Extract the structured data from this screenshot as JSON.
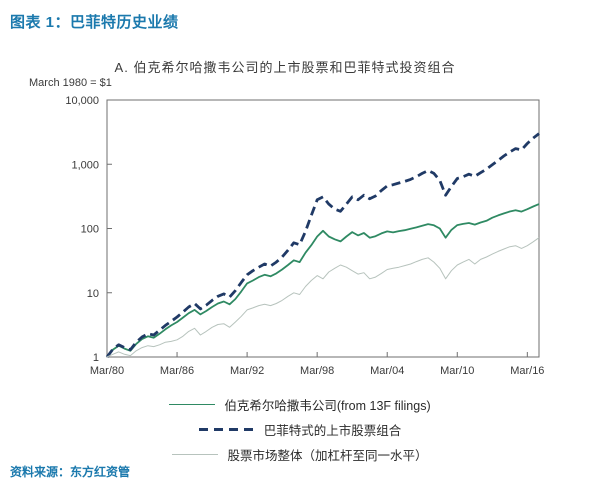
{
  "page": {
    "title": "图表 1：巴菲特历史业绩",
    "source": "资料来源：东方红资管"
  },
  "chart_data": {
    "type": "line",
    "title": "A. 伯克希尔哈撒韦公司的上市股票和巴菲特式投资组合",
    "note": "March 1980 = $1",
    "yscale": "log",
    "grid": false,
    "legend_position": "below",
    "xlim": [
      1980.25,
      2017.25
    ],
    "ylim": [
      1,
      10000
    ],
    "frame_color": "#6f6f6f",
    "xticks": [
      {
        "x": 1980.25,
        "label": "Mar/80"
      },
      {
        "x": 1986.25,
        "label": "Mar/86"
      },
      {
        "x": 1992.25,
        "label": "Mar/92"
      },
      {
        "x": 1998.25,
        "label": "Mar/98"
      },
      {
        "x": 2004.25,
        "label": "Mar/04"
      },
      {
        "x": 2010.25,
        "label": "Mar/10"
      },
      {
        "x": 2016.25,
        "label": "Mar/16"
      }
    ],
    "yticks": [
      {
        "v": 1,
        "label": "1"
      },
      {
        "v": 10,
        "label": "10"
      },
      {
        "v": 100,
        "label": "100"
      },
      {
        "v": 1000,
        "label": "1,000"
      },
      {
        "v": 10000,
        "label": "10,000"
      }
    ],
    "x": [
      1980.25,
      1980.75,
      1981.25,
      1981.75,
      1982.25,
      1982.75,
      1983.25,
      1983.75,
      1984.25,
      1984.75,
      1985.25,
      1985.75,
      1986.25,
      1986.75,
      1987.25,
      1987.75,
      1988.25,
      1988.75,
      1989.25,
      1989.75,
      1990.25,
      1990.75,
      1991.25,
      1991.75,
      1992.25,
      1992.75,
      1993.25,
      1993.75,
      1994.25,
      1994.75,
      1995.25,
      1995.75,
      1996.25,
      1996.75,
      1997.25,
      1997.75,
      1998.25,
      1998.75,
      1999.25,
      1999.75,
      2000.25,
      2000.75,
      2001.25,
      2001.75,
      2002.25,
      2002.75,
      2003.25,
      2003.75,
      2004.25,
      2004.75,
      2005.25,
      2005.75,
      2006.25,
      2006.75,
      2007.25,
      2007.75,
      2008.25,
      2008.75,
      2009.25,
      2009.75,
      2010.25,
      2010.75,
      2011.25,
      2011.75,
      2012.25,
      2012.75,
      2013.25,
      2013.75,
      2014.25,
      2014.75,
      2015.25,
      2015.75,
      2016.25,
      2016.75,
      2017.25
    ],
    "series": [
      {
        "id": "berkshire",
        "name": "伯克希尔哈撒韦公司(from 13F filings)",
        "color": "#2f8a63",
        "width": 1.8,
        "dash": null,
        "values": [
          1.0,
          1.3,
          1.5,
          1.35,
          1.25,
          1.6,
          1.9,
          2.1,
          2.0,
          2.3,
          2.7,
          3.1,
          3.5,
          4.1,
          4.8,
          5.4,
          4.6,
          5.2,
          6.0,
          6.8,
          7.3,
          6.6,
          8.0,
          10.5,
          14,
          15.5,
          17.5,
          19,
          18,
          20,
          23,
          27,
          32,
          30,
          42,
          55,
          75,
          92,
          75,
          68,
          63,
          75,
          88,
          78,
          85,
          72,
          76,
          84,
          90,
          87,
          91,
          94,
          99,
          104,
          110,
          117,
          112,
          100,
          72,
          95,
          113,
          118,
          122,
          115,
          124,
          132,
          147,
          160,
          172,
          184,
          192,
          183,
          200,
          220,
          240
        ]
      },
      {
        "id": "buffett-style-portfolio",
        "name": "巴菲特式的上市股票组合",
        "color": "#203a66",
        "width": 2.8,
        "dash": "9 5",
        "values": [
          1.0,
          1.32,
          1.55,
          1.4,
          1.3,
          1.7,
          2.05,
          2.3,
          2.2,
          2.6,
          3.1,
          3.6,
          4.2,
          5.0,
          6.0,
          6.8,
          5.6,
          6.4,
          7.6,
          8.8,
          9.6,
          8.6,
          10.8,
          14.5,
          19,
          22,
          25,
          28,
          26,
          30,
          36,
          46,
          60,
          56,
          90,
          160,
          280,
          310,
          240,
          200,
          185,
          240,
          310,
          280,
          330,
          290,
          320,
          390,
          460,
          480,
          510,
          540,
          580,
          640,
          720,
          800,
          720,
          560,
          330,
          450,
          600,
          640,
          700,
          650,
          740,
          840,
          980,
          1150,
          1350,
          1550,
          1750,
          1680,
          2100,
          2550,
          3000
        ]
      },
      {
        "id": "overall-market-levered",
        "name": "股票市场整体（加杠杆至同一水平）",
        "color": "#b7c3bd",
        "width": 1,
        "dash": null,
        "values": [
          1.0,
          1.1,
          1.2,
          1.1,
          1.05,
          1.25,
          1.4,
          1.5,
          1.45,
          1.55,
          1.7,
          1.75,
          1.85,
          2.1,
          2.5,
          2.8,
          2.2,
          2.5,
          2.9,
          3.2,
          3.3,
          2.9,
          3.5,
          4.3,
          5.4,
          5.8,
          6.3,
          6.6,
          6.3,
          6.8,
          7.6,
          8.8,
          10,
          9.4,
          12.5,
          15.5,
          18.5,
          16.5,
          21,
          24,
          27,
          25,
          22,
          19.5,
          20.5,
          16.5,
          17.5,
          20,
          23,
          24,
          25,
          26.5,
          28,
          30.5,
          33,
          35,
          30,
          24,
          16.5,
          22,
          27,
          30,
          33,
          28,
          33,
          36,
          40,
          44,
          48,
          52,
          54,
          49,
          54,
          62,
          72
        ]
      }
    ]
  }
}
